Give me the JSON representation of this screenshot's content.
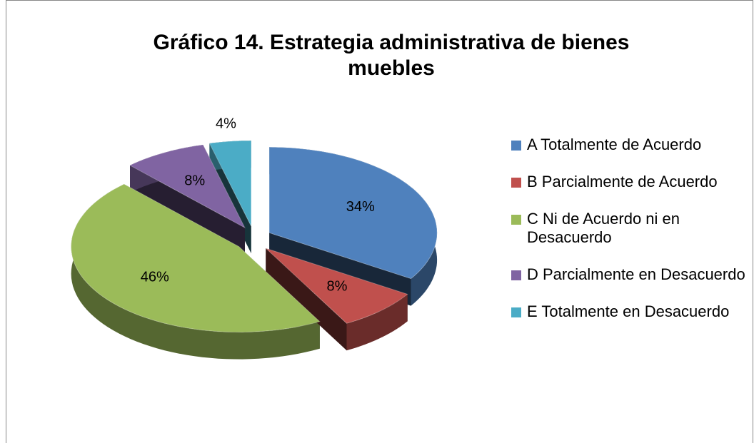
{
  "chart_data": {
    "type": "pie",
    "title": "Gráfico 14. Estrategia administrativa de bienes muebles",
    "categories": [
      "A Totalmente de Acuerdo",
      "B Parcialmente de Acuerdo",
      "C Ni de Acuerdo ni en Desacuerdo",
      "D  Parcialmente en Desacuerdo",
      "E Totalmente en Desacuerdo"
    ],
    "values": [
      34,
      8,
      46,
      8,
      4
    ],
    "value_labels": [
      "34%",
      "8%",
      "46%",
      "8%",
      "4%"
    ],
    "colors": [
      "#4f81bd",
      "#c0504d",
      "#9bbb59",
      "#8064a2",
      "#4bacc6"
    ],
    "legend": "right"
  }
}
